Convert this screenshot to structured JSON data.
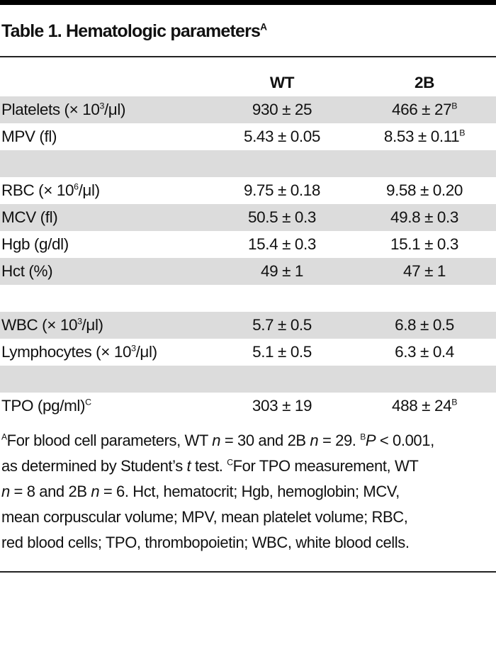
{
  "title": {
    "text": "Table 1. Hematologic parameters",
    "sup": "A"
  },
  "columns": [
    "",
    "WT",
    "2B"
  ],
  "rows": [
    {
      "label": "Platelets (× 10",
      "label_sup": "3",
      "label_tail": "/μl)",
      "wt": "930 ± 25",
      "b2": "466 ± 27",
      "b2_sup": "B",
      "shade": true
    },
    {
      "label": "MPV (fl)",
      "wt": "5.43 ± 0.05",
      "b2": "8.53 ± 0.11",
      "b2_sup": "B",
      "shade": false
    },
    {
      "label": "",
      "wt": "",
      "b2": "",
      "shade": true
    },
    {
      "label": "RBC (× 10",
      "label_sup": "6",
      "label_tail": "/μl)",
      "wt": "9.75 ± 0.18",
      "b2": "9.58 ± 0.20",
      "shade": false
    },
    {
      "label": "MCV (fl)",
      "wt": "50.5 ± 0.3",
      "b2": "49.8 ± 0.3",
      "shade": true
    },
    {
      "label": "Hgb (g/dl)",
      "wt": "15.4 ± 0.3",
      "b2": "15.1 ± 0.3",
      "shade": false
    },
    {
      "label": "Hct (%)",
      "wt": "49 ± 1",
      "b2": "47 ± 1",
      "shade": true
    },
    {
      "label": "",
      "wt": "",
      "b2": "",
      "shade": false
    },
    {
      "label": "WBC (× 10",
      "label_sup": "3",
      "label_tail": "/μl)",
      "wt": "5.7 ± 0.5",
      "b2": "6.8 ± 0.5",
      "shade": true
    },
    {
      "label": "Lymphocytes (× 10",
      "label_sup": "3",
      "label_tail": "/μl)",
      "wt": "5.1 ± 0.5",
      "b2": "6.3 ± 0.4",
      "shade": false
    },
    {
      "label": "",
      "wt": "",
      "b2": "",
      "shade": true
    },
    {
      "label": "TPO (pg/ml)",
      "label_sup": "C",
      "label_tail": "",
      "wt": "303 ± 19",
      "b2": "488 ± 24",
      "b2_sup": "B",
      "shade": false
    }
  ],
  "footnote_lines": [
    [
      {
        "sup": "A"
      },
      {
        "t": "For blood cell parameters, WT "
      },
      {
        "i": "n"
      },
      {
        "t": " = 30 and 2B "
      },
      {
        "i": "n"
      },
      {
        "t": " = 29. "
      },
      {
        "sup": "B"
      },
      {
        "i": "P"
      },
      {
        "t": " < 0.001,"
      }
    ],
    [
      {
        "t": "as determined by Student’s "
      },
      {
        "i": "t"
      },
      {
        "t": " test. "
      },
      {
        "sup": "C"
      },
      {
        "t": "For TPO measurement, WT"
      }
    ],
    [
      {
        "i": "n"
      },
      {
        "t": " = 8 and 2B "
      },
      {
        "i": "n"
      },
      {
        "t": " = 6. Hct, hematocrit; Hgb, hemoglobin; MCV,"
      }
    ],
    [
      {
        "t": "mean corpuscular volume; MPV, mean platelet volume; RBC,"
      }
    ],
    [
      {
        "t": "red blood cells; TPO, thrombopoietin; WBC, white blood cells."
      }
    ]
  ]
}
